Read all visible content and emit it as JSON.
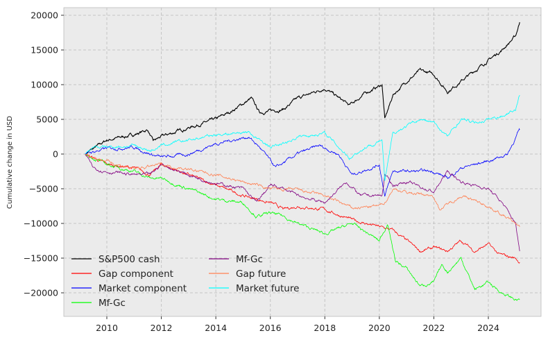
{
  "chart_data": {
    "type": "line",
    "title": "",
    "xlabel": "",
    "ylabel": "Cumulative change in USD",
    "xlim": [
      2008.4,
      2025.9
    ],
    "ylim": [
      -23500,
      21100
    ],
    "xticks": [
      2010,
      2012,
      2014,
      2016,
      2018,
      2020,
      2022,
      2024
    ],
    "yticks": [
      -20000,
      -15000,
      -10000,
      -5000,
      0,
      5000,
      10000,
      15000,
      20000
    ],
    "grid": true,
    "legend_position": "lower-left",
    "series": [
      {
        "name": "S&P500 cash",
        "color": "#000000",
        "x": [
          2009.2,
          2010,
          2011,
          2011.5,
          2011.7,
          2012,
          2013,
          2014,
          2014.5,
          2015.3,
          2015.6,
          2016,
          2016.5,
          2017,
          2018,
          2018.9,
          2019.5,
          2020.1,
          2020.2,
          2020.5,
          2021,
          2021.5,
          2022,
          2022.5,
          2023,
          2023.5,
          2024,
          2024.5,
          2025,
          2025.15
        ],
        "y": [
          0,
          2000,
          2800,
          3500,
          1800,
          2500,
          3800,
          5000,
          6000,
          8000,
          6000,
          6200,
          6500,
          8000,
          9500,
          7000,
          8800,
          10000,
          5000,
          8500,
          10500,
          12000,
          11500,
          9000,
          10500,
          12000,
          13500,
          15000,
          17000,
          19000
        ]
      },
      {
        "name": "Gap component",
        "color": "#ff0000",
        "x": [
          2009.2,
          2010,
          2011,
          2011.6,
          2012,
          2013,
          2014,
          2015,
          2016,
          2016.5,
          2017,
          2018,
          2019,
          2020,
          2020.5,
          2021,
          2021.5,
          2022,
          2022.5,
          2023,
          2023.5,
          2024,
          2024.4,
          2025,
          2025.15
        ],
        "y": [
          0,
          -1500,
          -2000,
          -3000,
          -1500,
          -3000,
          -4500,
          -6000,
          -7000,
          -8000,
          -7500,
          -8000,
          -9500,
          -10500,
          -11000,
          -12500,
          -14000,
          -13500,
          -14000,
          -12500,
          -14000,
          -13000,
          -14500,
          -15000,
          -15600
        ]
      },
      {
        "name": "Market component",
        "color": "#0000ff",
        "x": [
          2009.2,
          2010,
          2011,
          2011.6,
          2012,
          2013,
          2014,
          2015.2,
          2015.6,
          2016.2,
          2017,
          2017.8,
          2018.5,
          2019,
          2020,
          2020.2,
          2020.5,
          2021,
          2022,
          2022.5,
          2023,
          2024,
          2024.7,
          2025.15
        ],
        "y": [
          0,
          800,
          1000,
          0,
          -500,
          0,
          1500,
          2500,
          1000,
          -2000,
          0,
          1200,
          0,
          -3000,
          -1500,
          -6000,
          -2500,
          -2500,
          -2500,
          -3500,
          -2000,
          -1000,
          0,
          3500
        ]
      },
      {
        "name": "Mf-Gc",
        "color": "#00ff00",
        "x": [
          2009.2,
          2010,
          2011,
          2011.6,
          2012,
          2013,
          2014,
          2015,
          2015.5,
          2016,
          2016.5,
          2017,
          2018,
          2019,
          2020,
          2020.3,
          2020.6,
          2021,
          2021.5,
          2022,
          2022.3,
          2022.5,
          2023,
          2023.5,
          2024,
          2024.5,
          2025,
          2025.15
        ],
        "y": [
          0,
          -1500,
          -2500,
          -3500,
          -3500,
          -5000,
          -6500,
          -7000,
          -9000,
          -8500,
          -9000,
          -10000,
          -11500,
          -10000,
          -12500,
          -10000,
          -15500,
          -16500,
          -19000,
          -18500,
          -16000,
          -17000,
          -15000,
          -19500,
          -18500,
          -20000,
          -21000,
          -21000
        ]
      },
      {
        "name": "Mf-Gc",
        "color": "#800080",
        "x": [
          2009.2,
          2009.5,
          2010,
          2011,
          2011.6,
          2012,
          2013,
          2014,
          2015,
          2015.5,
          2016,
          2016.5,
          2017,
          2018,
          2018.8,
          2019.3,
          2020.1,
          2020.2,
          2020.5,
          2021,
          2022,
          2022.5,
          2023,
          2024,
          2024.5,
          2025,
          2025.15
        ],
        "y": [
          0,
          -2000,
          -2500,
          -3000,
          -3000,
          -1500,
          -3000,
          -4200,
          -5000,
          -7000,
          -4500,
          -5000,
          -6000,
          -7000,
          -4000,
          -6000,
          -6000,
          -3000,
          -4500,
          -4000,
          -5500,
          -2500,
          -4000,
          -5000,
          -7000,
          -10000,
          -14000
        ]
      },
      {
        "name": "Gap future",
        "color": "#ff7f50",
        "x": [
          2009.2,
          2010,
          2011,
          2012,
          2013,
          2014,
          2015,
          2016,
          2017,
          2018,
          2019,
          2020,
          2020.2,
          2020.5,
          2021,
          2022,
          2022.2,
          2023,
          2024,
          2025,
          2025.15
        ],
        "y": [
          0,
          -1000,
          -2200,
          -1500,
          -2200,
          -3000,
          -4000,
          -5000,
          -5200,
          -6000,
          -7800,
          -7500,
          -7000,
          -5000,
          -5500,
          -6000,
          -8000,
          -6000,
          -7500,
          -10000,
          -10500
        ]
      },
      {
        "name": "Market future",
        "color": "#00ffff",
        "x": [
          2009.2,
          2009.5,
          2010,
          2011,
          2011.6,
          2012,
          2013,
          2014,
          2015.2,
          2015.6,
          2016,
          2016.5,
          2017,
          2018,
          2018.9,
          2019.5,
          2020.1,
          2020.2,
          2020.5,
          2021,
          2021.5,
          2022,
          2022.5,
          2023,
          2023.5,
          2024,
          2024.5,
          2025,
          2025.15
        ],
        "y": [
          0,
          1000,
          1000,
          1200,
          500,
          1200,
          2000,
          2800,
          3200,
          2000,
          1000,
          1500,
          2500,
          3000,
          -500,
          1000,
          2000,
          -4000,
          3000,
          4000,
          5000,
          4500,
          2500,
          5000,
          4500,
          5000,
          5500,
          6500,
          8500
        ]
      }
    ]
  }
}
